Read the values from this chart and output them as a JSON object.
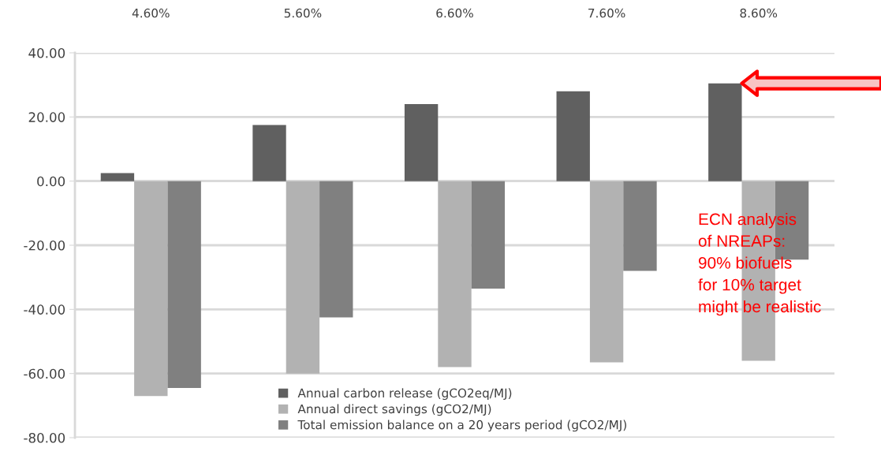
{
  "chart_data": {
    "type": "bar",
    "categories": [
      "4.60%",
      "5.60%",
      "6.60%",
      "7.60%",
      "8.60%"
    ],
    "series": [
      {
        "name": "Annual carbon release (gCO2eq/MJ)",
        "color": "#606060",
        "values": [
          2.5,
          17.5,
          24,
          28,
          30.5
        ]
      },
      {
        "name": "Annual direct savings (gCO2/MJ)",
        "color": "#b2b2b2",
        "values": [
          -67,
          -60,
          -58,
          -56.5,
          -56
        ]
      },
      {
        "name": "Total emission balance on a 20 years period (gCO2/MJ)",
        "color": "#808080",
        "values": [
          -64.5,
          -42.5,
          -33.5,
          -28,
          -24.5
        ]
      }
    ],
    "ylim": [
      -80,
      40
    ],
    "yticks": [
      {
        "value": 40,
        "label": "40.00"
      },
      {
        "value": 20,
        "label": "20.00"
      },
      {
        "value": 0,
        "label": "0.00"
      },
      {
        "value": -20,
        "label": "-20.00"
      },
      {
        "value": -40,
        "label": "-40.00"
      },
      {
        "value": -60,
        "label": "-60.00"
      },
      {
        "value": -80,
        "label": "-80.00"
      }
    ],
    "grid": "y",
    "legend": "bottom",
    "annotations": [
      "ECN analysis\nof NREAPs:\n90% biofuels\nfor 10% target\nmight be realistic"
    ]
  }
}
